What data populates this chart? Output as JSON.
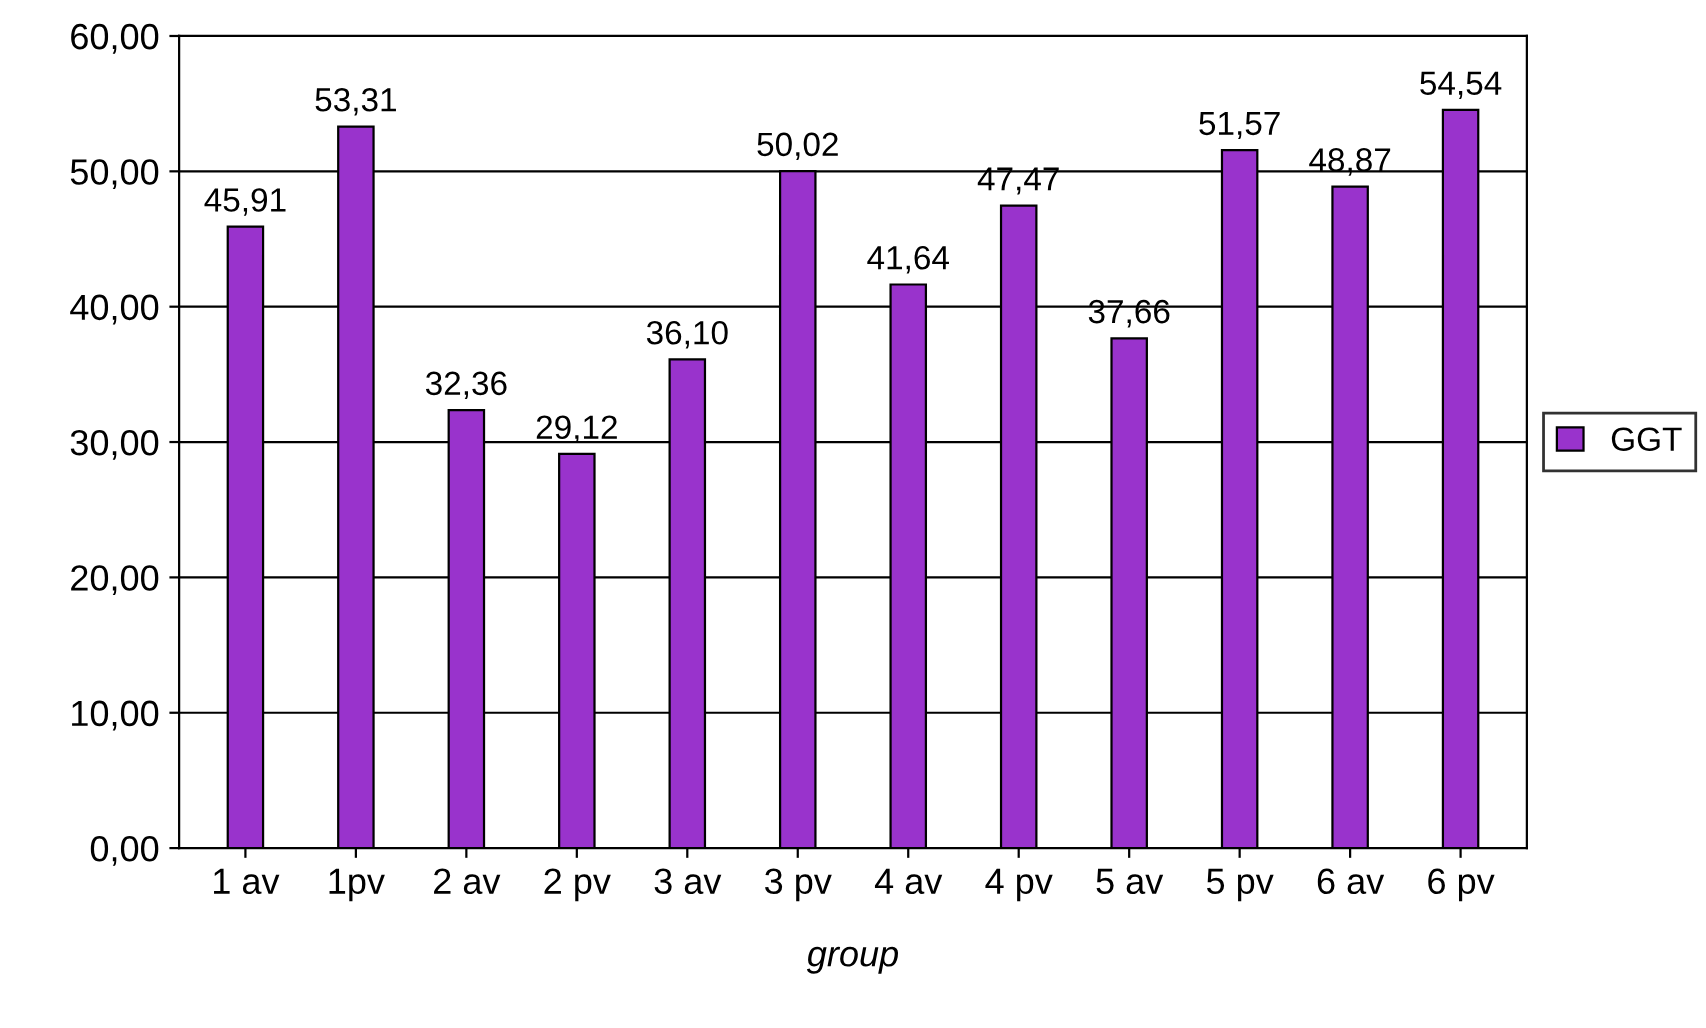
{
  "chart_data": {
    "type": "bar",
    "xlabel": "group",
    "categories": [
      "1 av",
      "1pv",
      "2 av",
      "2 pv",
      "3 av",
      "3 pv",
      "4 av",
      "4 pv",
      "5 av",
      "5 pv",
      "6 av",
      "6 pv"
    ],
    "series": [
      {
        "name": "GGT",
        "color": "#9933cc",
        "values": [
          45.91,
          53.31,
          32.36,
          29.12,
          36.1,
          50.02,
          41.64,
          47.47,
          37.66,
          51.57,
          48.87,
          54.54
        ],
        "value_labels": [
          "45,91",
          "53,31",
          "32,36",
          "29,12",
          "36,10",
          "50,02",
          "41,64",
          "47,47",
          "37,66",
          "51,57",
          "48,87",
          "54,54"
        ]
      }
    ],
    "ylim": [
      0,
      60
    ],
    "yticks": [
      {
        "value": 0,
        "label": "0,00"
      },
      {
        "value": 10,
        "label": "10,00"
      },
      {
        "value": 20,
        "label": "20,00"
      },
      {
        "value": 30,
        "label": "30,00"
      },
      {
        "value": 40,
        "label": "40,00"
      },
      {
        "value": 50,
        "label": "50,00"
      },
      {
        "value": 60,
        "label": "60,00"
      }
    ],
    "grid": "y",
    "legend": "right"
  }
}
